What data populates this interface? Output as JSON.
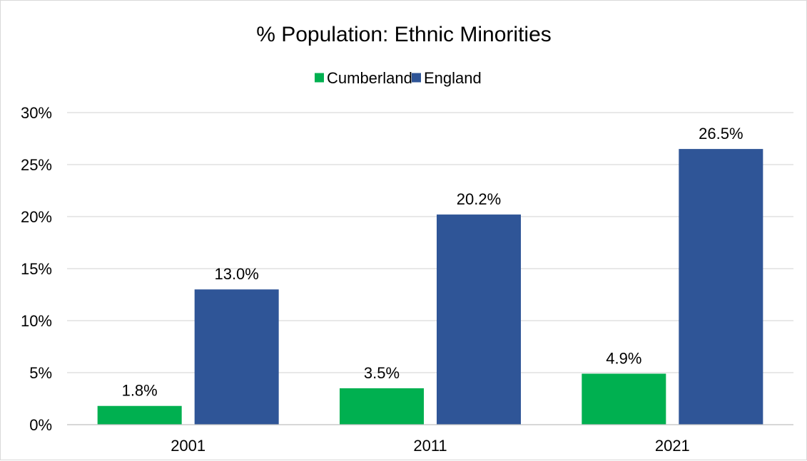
{
  "chart_data": {
    "type": "bar",
    "title": "% Population: Ethnic Minorities",
    "categories": [
      "2001",
      "2011",
      "2021"
    ],
    "series": [
      {
        "name": "Cumberland",
        "color": "#00b050",
        "values": [
          1.8,
          3.5,
          4.9
        ],
        "labels": [
          "1.8%",
          "3.5%",
          "4.9%"
        ]
      },
      {
        "name": "England",
        "color": "#2f5597",
        "values": [
          13.0,
          20.2,
          26.5
        ],
        "labels": [
          "13.0%",
          "20.2%",
          "26.5%"
        ]
      }
    ],
    "ylim": [
      0,
      30
    ],
    "y_ticks": [
      0,
      5,
      10,
      15,
      20,
      25,
      30
    ],
    "y_tick_labels": [
      "0%",
      "5%",
      "10%",
      "15%",
      "20%",
      "25%",
      "30%"
    ],
    "xlabel": "",
    "ylabel": "",
    "grid": true,
    "legend_position": "top"
  }
}
